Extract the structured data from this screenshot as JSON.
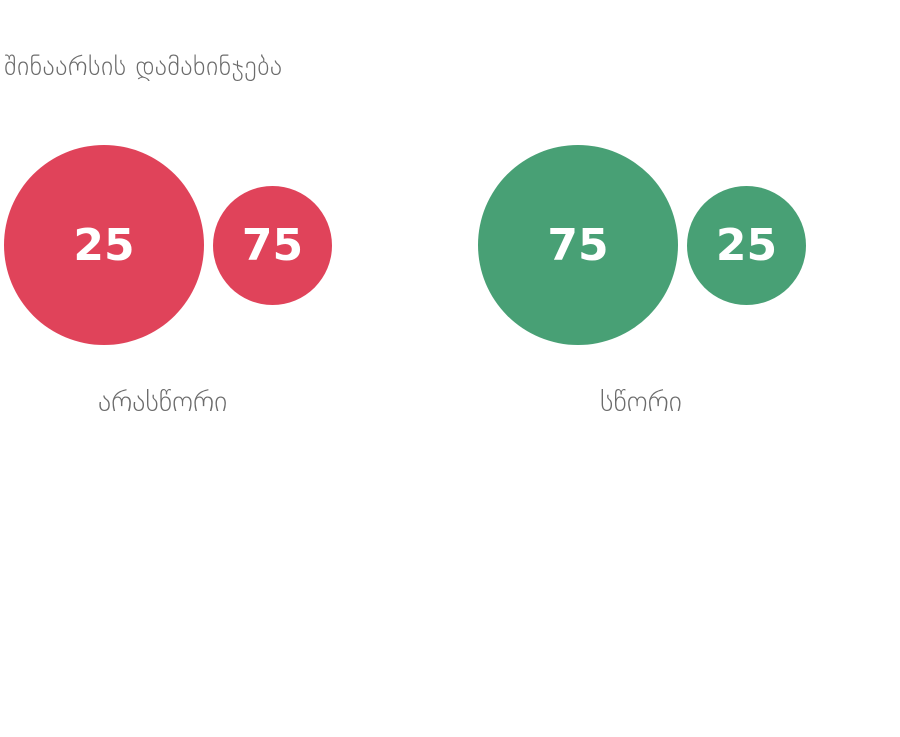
{
  "title": "შინაარსის დამახინჯება",
  "colors": {
    "wrong": "#e0435a",
    "correct": "#48a075",
    "text": "#6b6b6b"
  },
  "groups": [
    {
      "label": "არასწორი",
      "big_value": "25",
      "small_value": "75"
    },
    {
      "label": "სწორი",
      "big_value": "75",
      "small_value": "25"
    }
  ]
}
